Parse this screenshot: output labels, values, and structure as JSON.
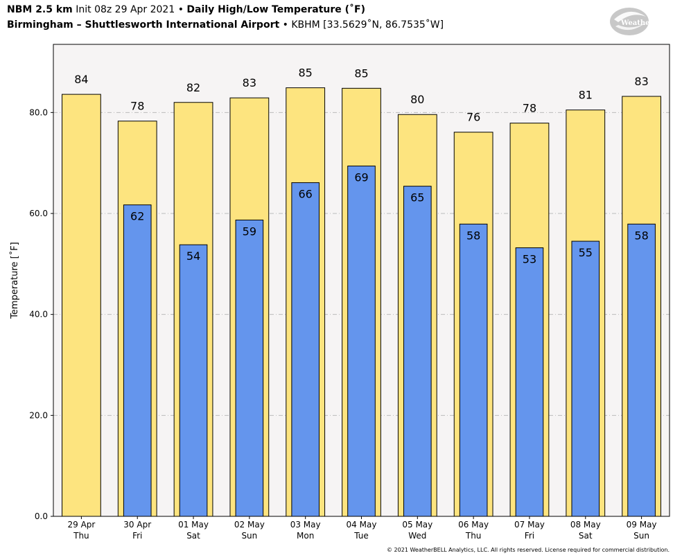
{
  "header": {
    "model": "NBM 2.5 km",
    "init": "Init 08z 29 Apr 2021",
    "bullet": "•",
    "product": "Daily High/Low Temperature (˚F)",
    "location": "Birmingham – Shuttlesworth International Airport",
    "station": "KBHM [33.5629˚N, 86.7535˚W]"
  },
  "logo": {
    "text": "WeatherBELL",
    "icon": "weatherbell-swirl-logo"
  },
  "copyright": "© 2021 WeatherBELL Analytics, LLC. All rights reserved. License required for commercial distribution.",
  "colors": {
    "high": "#fde47f",
    "low": "#6495ed",
    "plot_bg": "#f6f4f4",
    "grid": "#bbbbbb"
  },
  "chart_data": {
    "type": "bar",
    "ylabel": "Temperature [˚F]",
    "ylim": [
      0,
      93.5
    ],
    "yticks": [
      0.0,
      20.0,
      40.0,
      60.0,
      80.0
    ],
    "grid": true,
    "categories": [
      {
        "date": "29 Apr",
        "day": "Thu"
      },
      {
        "date": "30 Apr",
        "day": "Fri"
      },
      {
        "date": "01 May",
        "day": "Sat"
      },
      {
        "date": "02 May",
        "day": "Sun"
      },
      {
        "date": "03 May",
        "day": "Mon"
      },
      {
        "date": "04 May",
        "day": "Tue"
      },
      {
        "date": "05 May",
        "day": "Wed"
      },
      {
        "date": "06 May",
        "day": "Thu"
      },
      {
        "date": "07 May",
        "day": "Fri"
      },
      {
        "date": "08 May",
        "day": "Sat"
      },
      {
        "date": "09 May",
        "day": "Sun"
      }
    ],
    "series": [
      {
        "values": [
          83.6,
          78.3,
          82.0,
          82.9,
          84.9,
          84.8,
          79.6,
          76.1,
          77.9,
          80.5,
          83.2
        ],
        "labels": [
          "84",
          "78",
          "82",
          "83",
          "85",
          "85",
          "80",
          "76",
          "78",
          "81",
          "83"
        ]
      },
      {
        "values": [
          null,
          61.7,
          53.8,
          58.7,
          66.1,
          69.4,
          65.4,
          57.9,
          53.2,
          54.5,
          57.9
        ],
        "labels": [
          null,
          "62",
          "54",
          "59",
          "66",
          "69",
          "65",
          "58",
          "53",
          "55",
          "58"
        ]
      }
    ]
  }
}
